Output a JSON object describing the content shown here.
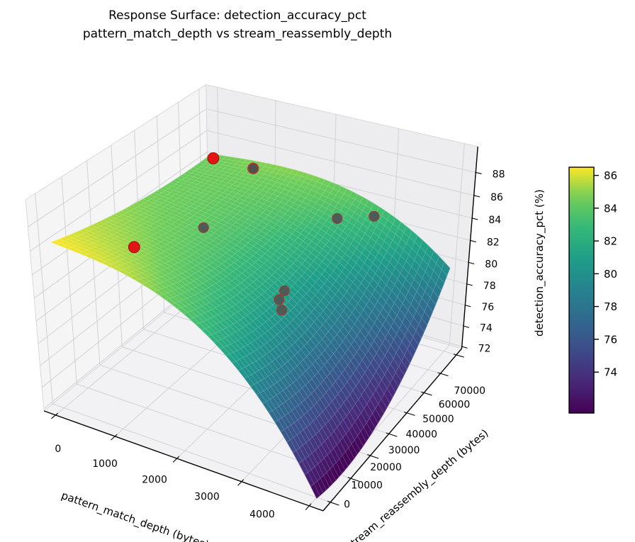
{
  "title": {
    "line1": "Response Surface: detection_accuracy_pct",
    "line2": "pattern_match_depth vs stream_reassembly_depth"
  },
  "chart_data": {
    "type": "scatter",
    "projection": "3d",
    "title": "Response Surface: detection_accuracy_pct — pattern_match_depth vs stream_reassembly_depth",
    "xlabel": "pattern_match_depth (bytes)",
    "ylabel": "stream_reassembly_depth (bytes)",
    "zlabel": "detection_accuracy_pct (%)",
    "xlim": [
      -200,
      4200
    ],
    "ylim": [
      -3500,
      73500
    ],
    "zlim": [
      71.8,
      90.2
    ],
    "xticks": [
      0,
      1000,
      2000,
      3000,
      4000
    ],
    "yticks": [
      0,
      10000,
      20000,
      30000,
      40000,
      50000,
      60000,
      70000
    ],
    "zticks": [
      72,
      74,
      76,
      78,
      80,
      82,
      84,
      86,
      88
    ],
    "grid": true,
    "scatter_points": [
      {
        "x": 600,
        "y": 54000,
        "z": 87.0,
        "style": "bright",
        "behind": false
      },
      {
        "x": 350,
        "y": 24000,
        "z": 83.0,
        "style": "bright",
        "behind": false
      },
      {
        "x": 2000,
        "y": 13500,
        "z": 82.5,
        "style": "bright",
        "behind": true
      },
      {
        "x": 800,
        "y": 68000,
        "z": 84.5,
        "style": "shaded_red",
        "behind": false
      },
      {
        "x": 700,
        "y": 46000,
        "z": 82.0,
        "style": "shaded",
        "behind": false
      },
      {
        "x": 2400,
        "y": 62000,
        "z": 83.0,
        "style": "shaded",
        "behind": false
      },
      {
        "x": 2900,
        "y": 65000,
        "z": 83.5,
        "style": "shaded",
        "behind": false
      },
      {
        "x": 2300,
        "y": 38000,
        "z": 80.0,
        "style": "shaded",
        "behind": false
      },
      {
        "x": 2280,
        "y": 36000,
        "z": 79.5,
        "style": "shaded",
        "behind": false
      },
      {
        "x": 2450,
        "y": 32000,
        "z": 79.5,
        "style": "shaded",
        "behind": false
      }
    ],
    "surface_model": {
      "description": "estimated fitted response surface; u=x/4000, v=y/70000; z = c + u3*u^3 + u3v*u^3*v + cv*v + v2*v^2 + uv*u*v + cu*u + uvv*u*v*(1-v)",
      "coefficients": {
        "c": 86.5,
        "u3": -13,
        "u3v": 6,
        "cv": -4.5,
        "v2": 2.5,
        "uv": 4,
        "cu": -1.8,
        "uvv": -10
      },
      "x_range": [
        0,
        4000
      ],
      "y_range": [
        0,
        70000
      ],
      "grid_resolution": 45,
      "z_min_est": 71.5,
      "z_max_est": 86.5
    },
    "colormap": {
      "name": "viridis",
      "vmin": 71.5,
      "vmax": 86.5,
      "stops": [
        [
          68,
          1,
          84
        ],
        [
          72,
          40,
          120
        ],
        [
          62,
          74,
          137
        ],
        [
          49,
          104,
          142
        ],
        [
          38,
          130,
          142
        ],
        [
          31,
          158,
          137
        ],
        [
          53,
          183,
          121
        ],
        [
          109,
          205,
          89
        ],
        [
          253,
          231,
          37
        ]
      ]
    },
    "colorbar": {
      "ticks": [
        74,
        76,
        78,
        80,
        82,
        84,
        86
      ]
    }
  },
  "colors": {
    "background": "#ffffff",
    "pane_left": "#f5f5f6",
    "pane_right": "#ededf0",
    "pane_floor": "#f2f2f4",
    "grid_line": "#d2d2d6",
    "axis_line": "#000000",
    "tick_text": "#000000",
    "point_bright": "#e31414",
    "point_bright_edge": "#8c0000",
    "point_shaded_fill": "#4e5a58",
    "point_shaded_edge": "#a03a30",
    "point_shaded_red_fill": "#544f4b",
    "point_shaded_red_edge": "#bf3a2e",
    "colorbar_frame": "#000000"
  }
}
